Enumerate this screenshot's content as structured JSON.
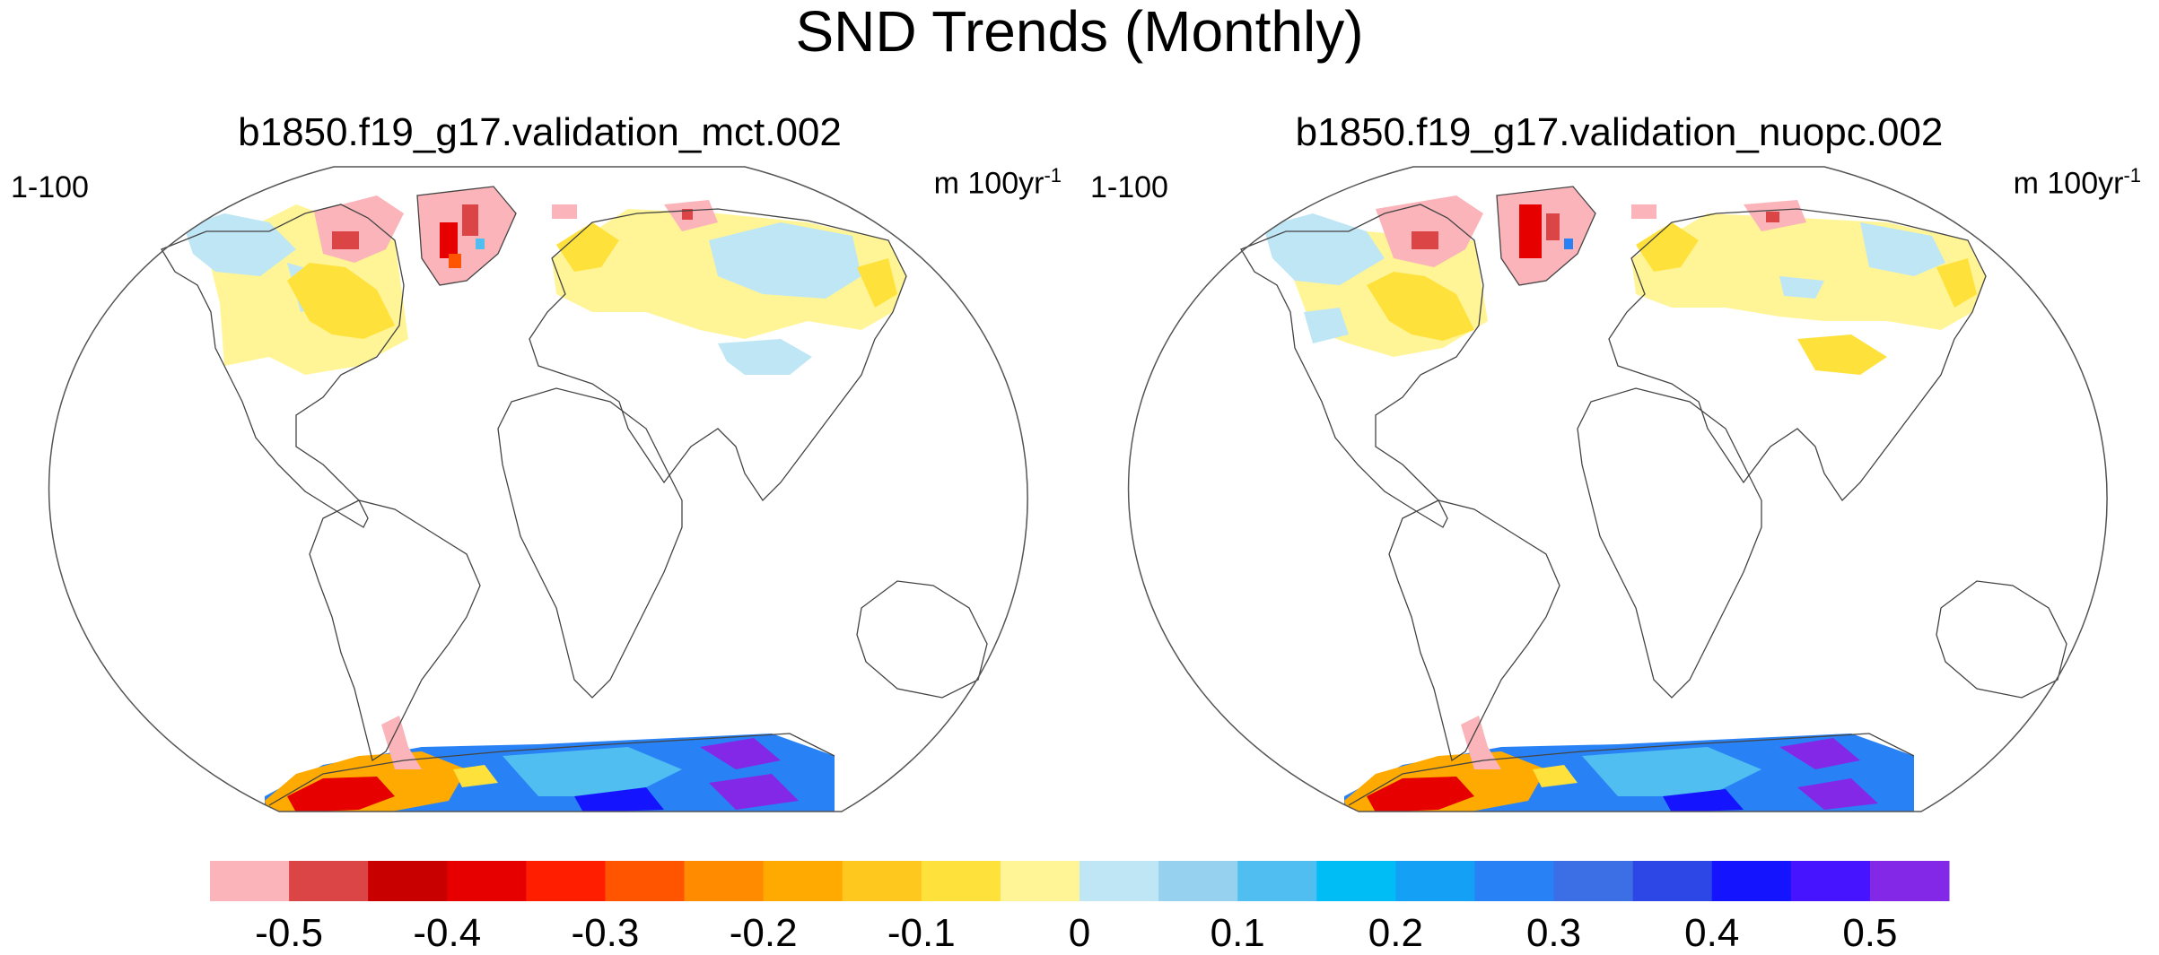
{
  "title": "SND Trends (Monthly)",
  "panels": [
    {
      "title": "b1850.f19_g17.validation_mct.002",
      "period": "1-100",
      "units": "m 100yr",
      "units_exp": "-1"
    },
    {
      "title": "b1850.f19_g17.validation_nuopc.002",
      "period": "1-100",
      "units": "m 100yr",
      "units_exp": "-1"
    }
  ],
  "colorbar": {
    "colors": [
      "#fbb4b9",
      "#dc4545",
      "#c80000",
      "#e60000",
      "#ff1e00",
      "#ff5500",
      "#ff8c00",
      "#ffaa00",
      "#ffc81e",
      "#ffe13c",
      "#fff596",
      "#bee6f5",
      "#96d2f0",
      "#50bef0",
      "#00bef5",
      "#14a0f5",
      "#2882f5",
      "#3c6ee6",
      "#2d46e6",
      "#1414ff",
      "#4614ff",
      "#8228e6"
    ],
    "labels": [
      "-0.5",
      "-0.4",
      "-0.3",
      "-0.2",
      "-0.1",
      "0",
      "0.1",
      "0.2",
      "0.3",
      "0.4",
      "0.5"
    ]
  }
}
